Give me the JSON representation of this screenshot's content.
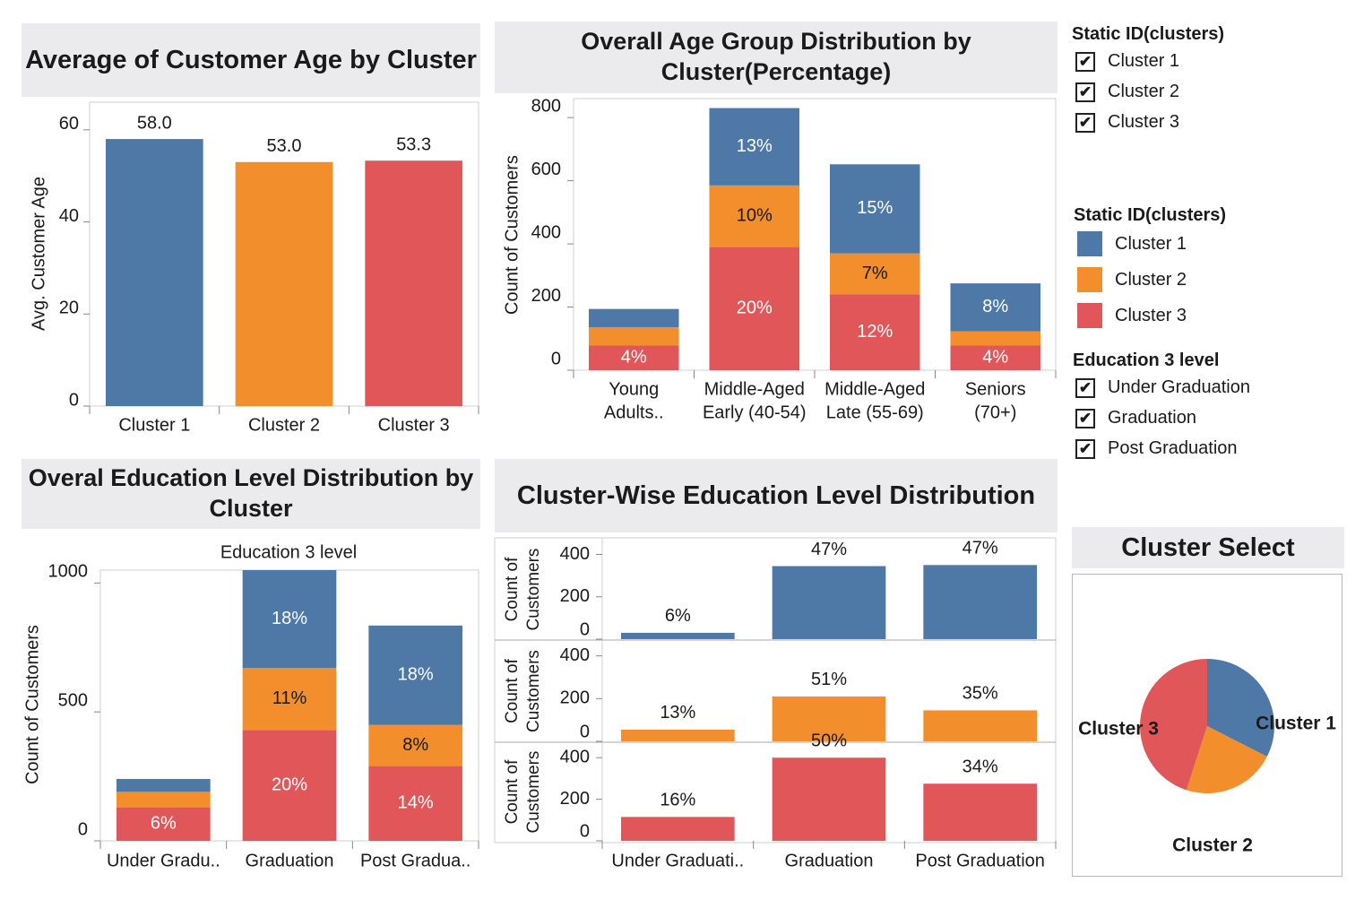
{
  "colors": {
    "cluster1": "#4e79a7",
    "cluster2": "#f28e2b",
    "cluster3": "#e15759",
    "title_band": "#ebebed"
  },
  "titles": {
    "avg_age": "Average of Customer Age by Cluster",
    "age_group": "Overall Age Group Distribution by Cluster(Percentage)",
    "education": "Overal Education Level Distribution by Cluster",
    "cluster_wise": "Cluster-Wise Education Level Distribution",
    "cluster_select": "Cluster Select"
  },
  "filter_clusters": {
    "title": "Static ID(clusters)",
    "items": [
      {
        "label": "Cluster 1",
        "checked": true
      },
      {
        "label": "Cluster 2",
        "checked": true
      },
      {
        "label": "Cluster 3",
        "checked": true
      }
    ]
  },
  "color_legend": {
    "title": "Static ID(clusters)",
    "items": [
      {
        "label": "Cluster 1",
        "color": "#4e79a7"
      },
      {
        "label": "Cluster 2",
        "color": "#f28e2b"
      },
      {
        "label": "Cluster 3",
        "color": "#e15759"
      }
    ]
  },
  "filter_education": {
    "title": "Education 3 level",
    "items": [
      {
        "label": "Under Graduation",
        "checked": true
      },
      {
        "label": "Graduation",
        "checked": true
      },
      {
        "label": "Post Graduation",
        "checked": true
      }
    ]
  },
  "chart_data": [
    {
      "type": "bar",
      "title": "Average of Customer Age by Cluster",
      "categories": [
        "Cluster 1",
        "Cluster 2",
        "Cluster 3"
      ],
      "values": [
        58.0,
        53.0,
        53.3
      ],
      "value_labels": [
        "58.0",
        "53.0",
        "53.3"
      ],
      "ylabel": "Avg. Customer Age",
      "yticks": [
        0,
        20,
        40,
        60
      ],
      "ylim": [
        0,
        66
      ]
    },
    {
      "type": "bar",
      "stacked": true,
      "title": "Overall Age Group Distribution by Cluster(Percentage)",
      "categories": [
        "Young Adults..",
        "Middle-Aged Early (40-54)",
        "Middle-Aged Late (55-69)",
        "Seniors (70+)"
      ],
      "category_lines": [
        [
          "Young",
          "Adults.."
        ],
        [
          "Middle-Aged",
          "Early (40-54)"
        ],
        [
          "Middle-Aged",
          "Late (55-69)"
        ],
        [
          "Seniors",
          "(70+)"
        ]
      ],
      "ylabel": "Count of Customers",
      "yticks": [
        0,
        200,
        400,
        600,
        800
      ],
      "ylim": [
        0,
        860
      ],
      "series": [
        {
          "name": "Cluster 3",
          "values": [
            78,
            390,
            240,
            78
          ],
          "labels": [
            "4%",
            "20%",
            "12%",
            "4%"
          ]
        },
        {
          "name": "Cluster 2",
          "values": [
            58,
            195,
            130,
            45
          ],
          "labels": [
            "",
            "10%",
            "7%",
            ""
          ]
        },
        {
          "name": "Cluster 1",
          "values": [
            58,
            245,
            282,
            152
          ],
          "labels": [
            "",
            "13%",
            "15%",
            "8%"
          ]
        }
      ]
    },
    {
      "type": "bar",
      "stacked": true,
      "title": "Overal Education Level Distribution by Cluster",
      "header": "Education 3 level",
      "categories": [
        "Under Gradu..",
        "Graduation",
        "Post Gradua.."
      ],
      "ylabel": "Count of Customers",
      "yticks": [
        0,
        500,
        1000
      ],
      "ylim": [
        0,
        1050
      ],
      "series": [
        {
          "name": "Cluster 3",
          "values": [
            130,
            430,
            290
          ],
          "labels": [
            "6%",
            "20%",
            "14%"
          ]
        },
        {
          "name": "Cluster 2",
          "values": [
            60,
            240,
            160
          ],
          "labels": [
            "",
            "11%",
            "8%"
          ]
        },
        {
          "name": "Cluster 1",
          "values": [
            50,
            380,
            385
          ],
          "labels": [
            "",
            "18%",
            "18%"
          ]
        }
      ]
    },
    {
      "type": "bar",
      "title": "Cluster-Wise Education Level Distribution",
      "categories": [
        "Under Graduati..",
        "Graduation",
        "Post Graduation"
      ],
      "ylabel": "Count of Customers",
      "yticks": [
        0,
        200,
        400
      ],
      "ylim": [
        0,
        470
      ],
      "panels": [
        {
          "name": "Cluster 1",
          "values": [
            30,
            345,
            350
          ],
          "labels": [
            "6%",
            "47%",
            "47%"
          ]
        },
        {
          "name": "Cluster 2",
          "values": [
            55,
            210,
            145
          ],
          "labels": [
            "13%",
            "51%",
            "35%"
          ]
        },
        {
          "name": "Cluster 3",
          "values": [
            115,
            400,
            275
          ],
          "labels": [
            "16%",
            "50%",
            "34%"
          ]
        }
      ]
    },
    {
      "type": "pie",
      "title": "Cluster Select",
      "slices": [
        {
          "name": "Cluster 1",
          "value": 32.5
        },
        {
          "name": "Cluster 2",
          "value": 22.5
        },
        {
          "name": "Cluster 3",
          "value": 45.0
        }
      ]
    }
  ]
}
